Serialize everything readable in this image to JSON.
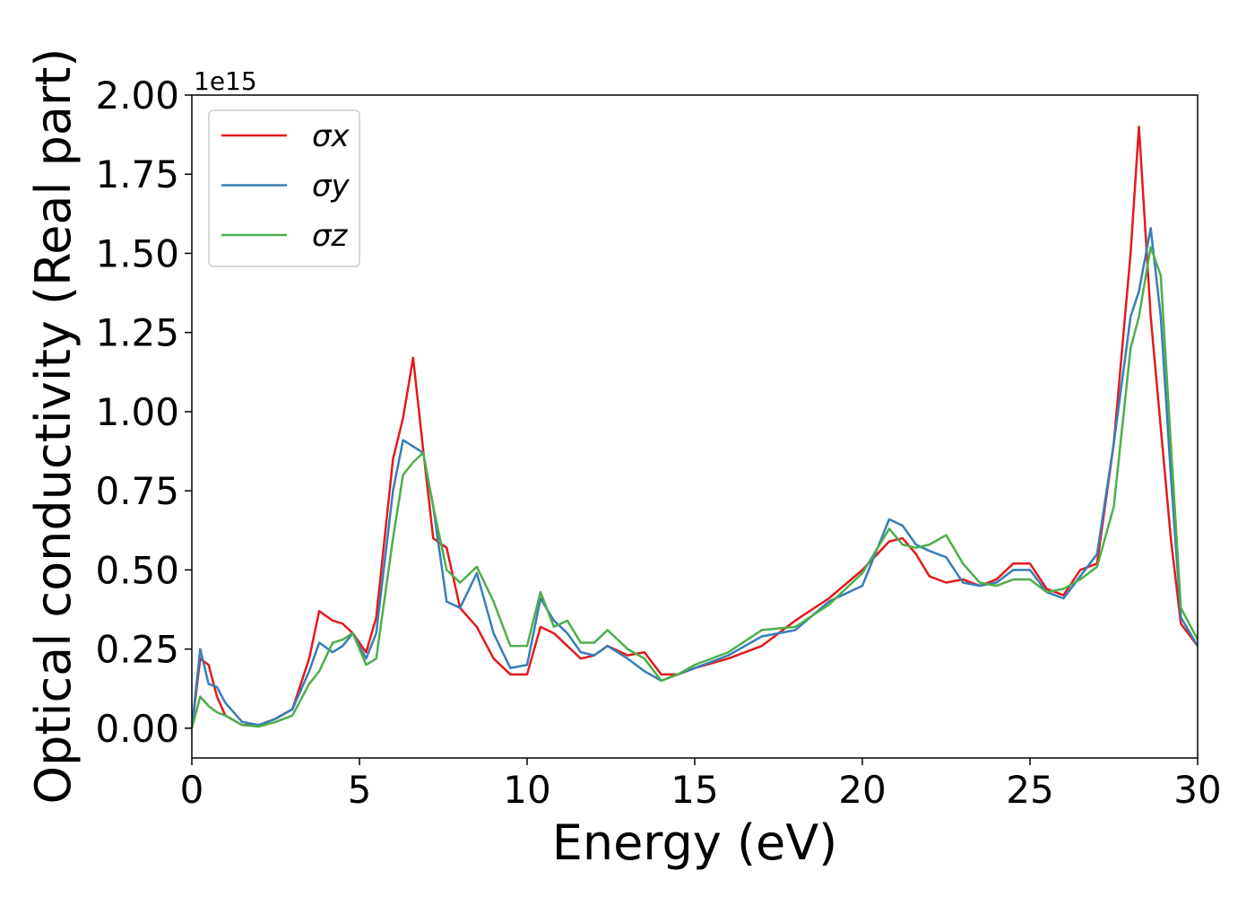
{
  "chart_data": {
    "type": "line",
    "xlabel": "Energy (eV)",
    "ylabel": "Optical conductivity (Real part)",
    "y_offset_text": "1e15",
    "x": [
      0,
      0.25,
      0.5,
      0.75,
      1,
      1.5,
      2,
      2.5,
      3,
      3.5,
      3.8,
      4.2,
      4.5,
      4.8,
      5.2,
      5.5,
      6,
      6.3,
      6.6,
      6.9,
      7.2,
      7.6,
      8,
      8.5,
      9,
      9.5,
      10,
      10.4,
      10.8,
      11.2,
      11.6,
      12,
      12.4,
      13,
      13.5,
      14,
      14.5,
      15,
      16,
      17,
      18,
      19,
      20,
      20.8,
      21.2,
      21.6,
      22,
      22.5,
      23,
      23.5,
      24,
      24.5,
      25,
      25.5,
      26,
      26.5,
      27,
      27.5,
      28,
      28.25,
      28.6,
      28.9,
      29.2,
      29.5,
      30
    ],
    "series": [
      {
        "name": "σx",
        "color": "#e41a1c",
        "values": [
          0,
          0.22,
          0.2,
          0.1,
          0.04,
          0.01,
          0.01,
          0.03,
          0.06,
          0.22,
          0.37,
          0.34,
          0.33,
          0.3,
          0.24,
          0.35,
          0.85,
          0.98,
          1.17,
          0.88,
          0.6,
          0.57,
          0.38,
          0.32,
          0.22,
          0.17,
          0.17,
          0.32,
          0.3,
          0.26,
          0.22,
          0.23,
          0.26,
          0.23,
          0.24,
          0.17,
          0.17,
          0.19,
          0.22,
          0.26,
          0.34,
          0.41,
          0.5,
          0.59,
          0.6,
          0.55,
          0.48,
          0.46,
          0.47,
          0.45,
          0.47,
          0.52,
          0.52,
          0.44,
          0.42,
          0.5,
          0.52,
          0.9,
          1.5,
          1.9,
          1.3,
          0.95,
          0.6,
          0.33,
          0.26
        ]
      },
      {
        "name": "σy",
        "color": "#377eb8",
        "values": [
          0,
          0.25,
          0.14,
          0.13,
          0.08,
          0.02,
          0.01,
          0.03,
          0.06,
          0.18,
          0.27,
          0.24,
          0.26,
          0.3,
          0.22,
          0.3,
          0.75,
          0.91,
          0.89,
          0.87,
          0.7,
          0.4,
          0.38,
          0.49,
          0.3,
          0.19,
          0.2,
          0.41,
          0.34,
          0.3,
          0.24,
          0.23,
          0.26,
          0.22,
          0.18,
          0.15,
          0.17,
          0.19,
          0.23,
          0.29,
          0.31,
          0.4,
          0.45,
          0.66,
          0.64,
          0.58,
          0.56,
          0.54,
          0.46,
          0.45,
          0.46,
          0.5,
          0.5,
          0.43,
          0.41,
          0.48,
          0.55,
          0.9,
          1.3,
          1.38,
          1.58,
          1.3,
          0.8,
          0.35,
          0.26
        ]
      },
      {
        "name": "σz",
        "color": "#4daf4a",
        "values": [
          0,
          0.1,
          0.07,
          0.05,
          0.04,
          0.01,
          0.005,
          0.02,
          0.04,
          0.14,
          0.18,
          0.27,
          0.28,
          0.3,
          0.2,
          0.22,
          0.6,
          0.8,
          0.84,
          0.87,
          0.7,
          0.5,
          0.46,
          0.51,
          0.4,
          0.26,
          0.26,
          0.43,
          0.32,
          0.34,
          0.27,
          0.27,
          0.31,
          0.25,
          0.22,
          0.15,
          0.17,
          0.2,
          0.24,
          0.31,
          0.32,
          0.39,
          0.49,
          0.63,
          0.58,
          0.57,
          0.58,
          0.61,
          0.52,
          0.46,
          0.45,
          0.47,
          0.47,
          0.43,
          0.44,
          0.47,
          0.51,
          0.7,
          1.2,
          1.3,
          1.52,
          1.43,
          0.9,
          0.38,
          0.28
        ]
      }
    ],
    "xlim": [
      0,
      30
    ],
    "xticks": [
      0,
      5,
      10,
      15,
      20,
      25,
      30
    ],
    "ylim": [
      -0.094,
      2.0
    ],
    "yticks": [
      {
        "value": 0,
        "label": "0.00"
      },
      0.25,
      {
        "value": 0.5,
        "label": "0.50"
      },
      0.75,
      {
        "value": 1,
        "label": "1.00"
      },
      1.25,
      {
        "value": 1.5,
        "label": "1.50"
      },
      1.75,
      {
        "value": 2,
        "label": "2.00"
      }
    ],
    "legend": "upper left",
    "grid": false
  }
}
